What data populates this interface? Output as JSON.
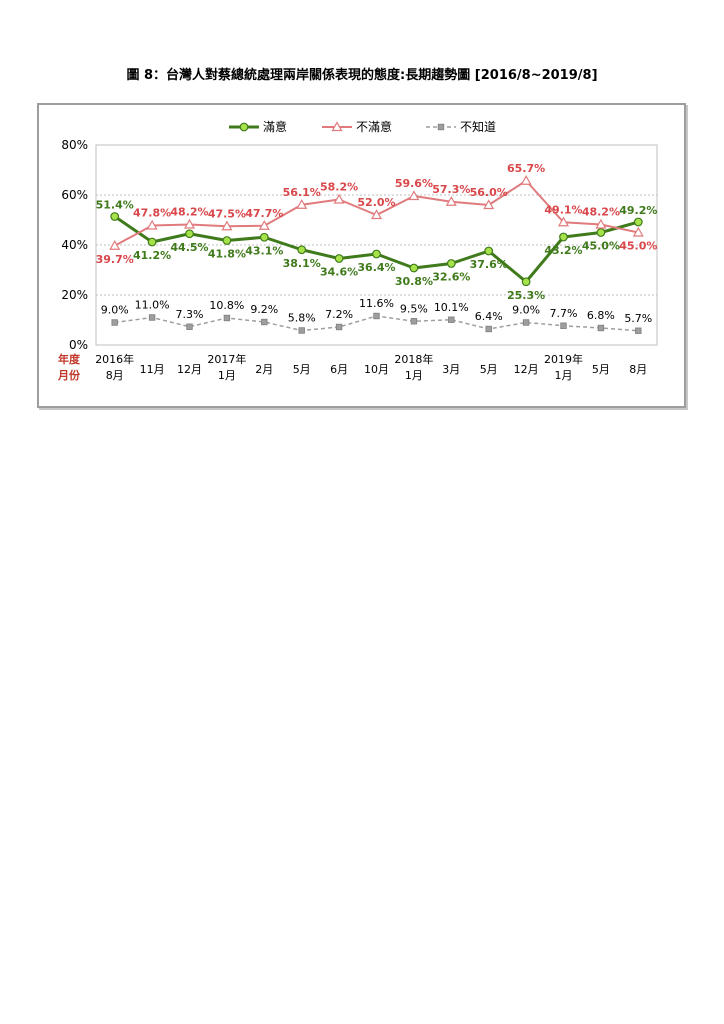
{
  "figure_title": "圖 8：台灣人對蔡總統處理兩岸關係表現的態度:長期趨勢圖  [2016/8~2019/8]",
  "colors": {
    "satisfied": "#3f7a1b",
    "satisfied_marker": "#a6e24a",
    "dissatisfied": "#e07a7c",
    "dissatisfied_label": "#d9474b",
    "unknown": "#9e9e9e"
  },
  "chart_data": {
    "type": "line",
    "title": "",
    "xlabel": "",
    "ylabel": "",
    "ylim": [
      0,
      80
    ],
    "yticks": [
      "0%",
      "20%",
      "40%",
      "60%",
      "80%"
    ],
    "ytick_values": [
      0,
      20,
      40,
      60,
      80
    ],
    "grid": true,
    "legend_position": "top-center",
    "axis_row_labels": [
      "年度",
      "月份"
    ],
    "categories": [
      "2016年8月",
      "2016年11月",
      "2016年12月",
      "2017年1月",
      "2017年2月",
      "2017年5月",
      "2017年6月",
      "2017年10月",
      "2018年1月",
      "2018年3月",
      "2018年5月",
      "2018年12月",
      "2019年1月",
      "2019年5月",
      "2019年8月"
    ],
    "year_labels": [
      "2016年",
      "",
      "",
      "2017年",
      "",
      "",
      "",
      "",
      "2018年",
      "",
      "",
      "",
      "2019年",
      "",
      ""
    ],
    "month_labels": [
      "8月",
      "11月",
      "12月",
      "1月",
      "2月",
      "5月",
      "6月",
      "10月",
      "1月",
      "3月",
      "5月",
      "12月",
      "1月",
      "5月",
      "8月"
    ],
    "series": [
      {
        "name": "滿意",
        "values": [
          51.4,
          41.2,
          44.5,
          41.8,
          43.1,
          38.1,
          34.6,
          36.4,
          30.8,
          32.6,
          37.6,
          25.3,
          43.2,
          45.0,
          49.2
        ],
        "labels": [
          "51.4%",
          "41.2%",
          "44.5%",
          "41.8%",
          "43.1%",
          "38.1%",
          "34.6%",
          "36.4%",
          "30.8%",
          "32.6%",
          "37.6%",
          "25.3%",
          "43.2%",
          "45.0%",
          "49.2%"
        ]
      },
      {
        "name": "不滿意",
        "values": [
          39.7,
          47.8,
          48.2,
          47.5,
          47.7,
          56.1,
          58.2,
          52.0,
          59.6,
          57.3,
          56.0,
          65.7,
          49.1,
          48.2,
          45.0
        ],
        "labels": [
          "39.7%",
          "47.8%",
          "48.2%",
          "47.5%",
          "47.7%",
          "56.1%",
          "58.2%",
          "52.0%",
          "59.6%",
          "57.3%",
          "56.0%",
          "65.7%",
          "49.1%",
          "48.2%",
          "45.0%"
        ]
      },
      {
        "name": "不知道",
        "values": [
          9.0,
          11.0,
          7.3,
          10.8,
          9.2,
          5.8,
          7.2,
          11.6,
          9.5,
          10.1,
          6.4,
          9.0,
          7.7,
          6.8,
          5.7
        ],
        "labels": [
          "9.0%",
          "11.0%",
          "7.3%",
          "10.8%",
          "9.2%",
          "5.8%",
          "7.2%",
          "11.6%",
          "9.5%",
          "10.1%",
          "6.4%",
          "9.0%",
          "7.7%",
          "6.8%",
          "5.7%"
        ]
      }
    ]
  }
}
